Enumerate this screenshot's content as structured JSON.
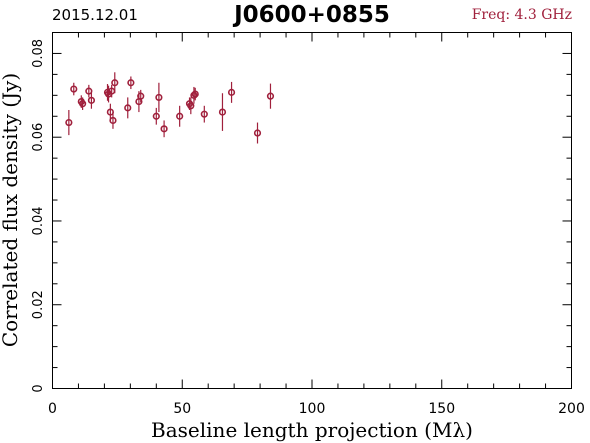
{
  "header": {
    "date": "2015.12.01",
    "source": "J0600+0855",
    "freq": "Freq: 4.3 GHz"
  },
  "colors": {
    "points": "#a0203c",
    "axes": "#000000"
  },
  "chart_data": {
    "type": "scatter",
    "xlabel": "Baseline length projection (Mλ)",
    "ylabel": "Correlated flux density (Jy)",
    "xlim": [
      0,
      200
    ],
    "ylim": [
      0,
      0.085
    ],
    "xticks": [
      0,
      50,
      100,
      150,
      200
    ],
    "xtick_labels": [
      "0",
      "50",
      "100",
      "150",
      "200"
    ],
    "yticks": [
      0,
      0.02,
      0.04,
      0.06,
      0.08
    ],
    "ytick_labels": [
      "0",
      "0.02",
      "0.04",
      "0.06",
      "0.08"
    ],
    "grid": false,
    "points": [
      {
        "x": 6.3,
        "y": 0.0635,
        "err": 0.003
      },
      {
        "x": 8.2,
        "y": 0.0715,
        "err": 0.0015
      },
      {
        "x": 11.1,
        "y": 0.0685,
        "err": 0.0015
      },
      {
        "x": 11.6,
        "y": 0.068,
        "err": 0.0015
      },
      {
        "x": 14.0,
        "y": 0.071,
        "err": 0.0015
      },
      {
        "x": 15.0,
        "y": 0.0688,
        "err": 0.002
      },
      {
        "x": 21.2,
        "y": 0.0707,
        "err": 0.002
      },
      {
        "x": 21.6,
        "y": 0.0703,
        "err": 0.002
      },
      {
        "x": 22.3,
        "y": 0.066,
        "err": 0.002
      },
      {
        "x": 22.8,
        "y": 0.071,
        "err": 0.0015
      },
      {
        "x": 23.3,
        "y": 0.064,
        "err": 0.002
      },
      {
        "x": 24.0,
        "y": 0.073,
        "err": 0.0025
      },
      {
        "x": 29.0,
        "y": 0.067,
        "err": 0.0025
      },
      {
        "x": 30.2,
        "y": 0.073,
        "err": 0.0015
      },
      {
        "x": 33.3,
        "y": 0.0685,
        "err": 0.0025
      },
      {
        "x": 34.0,
        "y": 0.0698,
        "err": 0.0015
      },
      {
        "x": 40.0,
        "y": 0.065,
        "err": 0.002
      },
      {
        "x": 41.0,
        "y": 0.0695,
        "err": 0.0035
      },
      {
        "x": 43.0,
        "y": 0.062,
        "err": 0.002
      },
      {
        "x": 49.0,
        "y": 0.065,
        "err": 0.0025
      },
      {
        "x": 52.8,
        "y": 0.068,
        "err": 0.0015
      },
      {
        "x": 53.3,
        "y": 0.0675,
        "err": 0.002
      },
      {
        "x": 54.5,
        "y": 0.07,
        "err": 0.002
      },
      {
        "x": 55.0,
        "y": 0.0703,
        "err": 0.0015
      },
      {
        "x": 58.5,
        "y": 0.0655,
        "err": 0.002
      },
      {
        "x": 65.5,
        "y": 0.066,
        "err": 0.0045
      },
      {
        "x": 69.0,
        "y": 0.0707,
        "err": 0.0025
      },
      {
        "x": 79.0,
        "y": 0.061,
        "err": 0.0025
      },
      {
        "x": 84.0,
        "y": 0.0698,
        "err": 0.003
      }
    ]
  }
}
